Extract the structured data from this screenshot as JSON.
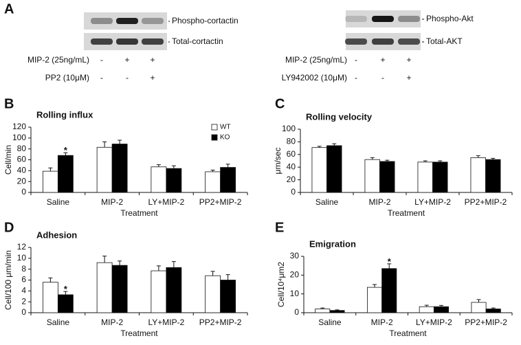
{
  "blot_panel": {
    "label": "A",
    "blots": [
      {
        "bands": [
          "Phospho-cortactin",
          "Total-cortactin"
        ],
        "treatments": [
          {
            "name": "MIP-2 (25ng/mL)",
            "signs": [
              "-",
              "+",
              "+"
            ]
          },
          {
            "name": "PP2 (10μM)",
            "signs": [
              "-",
              "-",
              "+"
            ]
          }
        ]
      },
      {
        "bands": [
          "Phospho-Akt",
          "Total-AKT"
        ],
        "treatments": [
          {
            "name": "MIP-2 (25ng/mL)",
            "signs": [
              "-",
              "+",
              "+"
            ]
          },
          {
            "name": "LY942002 (10μM)",
            "signs": [
              "-",
              "-",
              "+"
            ]
          }
        ]
      }
    ]
  },
  "chart_data": [
    {
      "type": "bar",
      "label": "B",
      "title": "Rolling influx",
      "ylabel": "Cell/min",
      "xlabel": "Treatment",
      "categories": [
        "Saline",
        "MIP-2",
        "LY+MIP-2",
        "PP2+MIP-2"
      ],
      "series": [
        {
          "name": "WT",
          "color": "#ffffff",
          "values": [
            39,
            83,
            47,
            38
          ],
          "errors": [
            6,
            10,
            4,
            3
          ]
        },
        {
          "name": "KO",
          "color": "#000000",
          "values": [
            68,
            89,
            44,
            46
          ],
          "errors": [
            5,
            7,
            5,
            6
          ]
        }
      ],
      "ylim": [
        0,
        120
      ],
      "yticks": [
        0,
        20,
        40,
        60,
        80,
        100,
        120
      ],
      "legend": "upper right",
      "annotations": [
        {
          "text": "*",
          "x": "Saline",
          "y": 80
        }
      ]
    },
    {
      "type": "bar",
      "label": "C",
      "title": "Rolling velocity",
      "ylabel": "μm/sec",
      "xlabel": "Treatment",
      "categories": [
        "Saline",
        "MIP-2",
        "LY+MIP-2",
        "PP2+MIP-2"
      ],
      "series": [
        {
          "color": "#ffffff",
          "values": [
            71,
            52,
            48,
            55
          ],
          "errors": [
            2,
            3,
            2,
            3
          ]
        },
        {
          "color": "#000000",
          "values": [
            74,
            49,
            48,
            52
          ],
          "errors": [
            3,
            2,
            2,
            2
          ]
        }
      ],
      "ylim": [
        0,
        100
      ],
      "yticks": [
        0,
        20,
        40,
        60,
        80,
        100
      ]
    },
    {
      "type": "bar",
      "label": "D",
      "title": "Adhesion",
      "ylabel": "Cell/100 μm/min",
      "xlabel": "Treatment",
      "categories": [
        "Saline",
        "MIP-2",
        "LY+MIP-2",
        "PP2+MIP-2"
      ],
      "series": [
        {
          "color": "#ffffff",
          "values": [
            5.6,
            9.2,
            7.7,
            6.8
          ],
          "errors": [
            0.8,
            1.2,
            0.9,
            0.8
          ]
        },
        {
          "color": "#000000",
          "values": [
            3.3,
            8.7,
            8.3,
            6.0
          ],
          "errors": [
            0.6,
            0.8,
            1.1,
            1.0
          ]
        }
      ],
      "ylim": [
        0,
        12
      ],
      "yticks": [
        0,
        2,
        4,
        6,
        8,
        10,
        12
      ],
      "annotations": [
        {
          "text": "*",
          "x": "Saline",
          "y": 4.6
        }
      ]
    },
    {
      "type": "bar",
      "label": "E",
      "title": "Emigration",
      "ylabel": "Cell/10⁴μm2",
      "xlabel": "Treatment",
      "categories": [
        "Saline",
        "MIP-2",
        "LY+MIP-2",
        "PP2+MIP-2"
      ],
      "series": [
        {
          "color": "#ffffff",
          "values": [
            2,
            13.5,
            3.2,
            5.5
          ],
          "errors": [
            0.5,
            1.5,
            0.8,
            1.5
          ]
        },
        {
          "color": "#000000",
          "values": [
            1.2,
            23.5,
            3.2,
            2
          ],
          "errors": [
            0.3,
            2.5,
            0.7,
            0.5
          ]
        }
      ],
      "ylim": [
        0,
        30
      ],
      "yticks": [
        0,
        10,
        20,
        30
      ],
      "annotations": [
        {
          "text": "*",
          "x": "MIP-2",
          "y": 28
        }
      ]
    }
  ]
}
